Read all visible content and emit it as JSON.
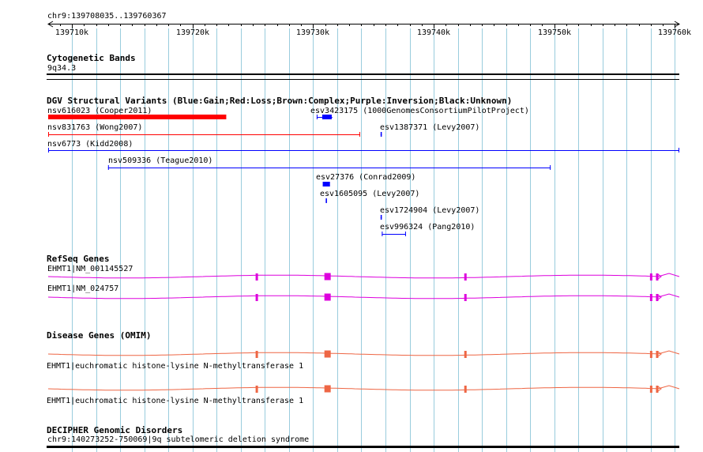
{
  "region_label": "chr9:139708035..139760367",
  "ruler": {
    "start": 139708035,
    "end": 139760367,
    "ticks": [
      {
        "pos": 139710000,
        "label": "139710k"
      },
      {
        "pos": 139720000,
        "label": "139720k"
      },
      {
        "pos": 139730000,
        "label": "139730k"
      },
      {
        "pos": 139740000,
        "label": "139740k"
      },
      {
        "pos": 139750000,
        "label": "139750k"
      },
      {
        "pos": 139760000,
        "label": "139760k"
      }
    ]
  },
  "colors": {
    "gain": "#0000ff",
    "loss": "#ff0000",
    "gene": "#dd00dd",
    "omim": "#ee6644",
    "grid": "#99ccdd"
  },
  "tracks": {
    "cytoband": {
      "title": "Cytogenetic Bands",
      "band": "9q34.3"
    },
    "dgv": {
      "title": "DGV Structural Variants (Blue:Gain;Red:Loss;Brown:Complex;Purple:Inversion;Black:Unknown)",
      "variants": [
        {
          "label": "nsv616023 (Cooper2011)",
          "start": 139708035,
          "end": 139722800,
          "type": "loss",
          "style": "thick"
        },
        {
          "label": "esv3423175 (1000GenomesConsortiumPilotProject)",
          "start": 139730300,
          "end": 139731600,
          "type": "gain",
          "style": "small"
        },
        {
          "label": "nsv831763 (Wong2007)",
          "start": 139708035,
          "end": 139733900,
          "type": "loss",
          "style": "line"
        },
        {
          "label": "esv1387371 (Levy2007)",
          "start": 139735600,
          "end": 139735700,
          "type": "gain",
          "style": "line"
        },
        {
          "label": "nsv6773 (Kidd2008)",
          "start": 139708035,
          "end": 139760367,
          "type": "gain",
          "style": "line"
        },
        {
          "label": "nsv509336 (Teague2010)",
          "start": 139713000,
          "end": 139749700,
          "type": "gain",
          "style": "line"
        },
        {
          "label": "esv27376 (Conrad2009)",
          "start": 139730800,
          "end": 139731400,
          "type": "gain",
          "style": "block"
        },
        {
          "label": "esv1605095 (Levy2007)",
          "start": 139731050,
          "end": 139731150,
          "type": "gain",
          "style": "line"
        },
        {
          "label": "esv1724904 (Levy2007)",
          "start": 139735600,
          "end": 139735700,
          "type": "gain",
          "style": "line"
        },
        {
          "label": "esv996324 (Pang2010)",
          "start": 139735700,
          "end": 139737700,
          "type": "gain",
          "style": "line"
        }
      ]
    },
    "refseq": {
      "title": "RefSeq Genes",
      "genes": [
        {
          "label": "EHMT1|NM_001145527"
        },
        {
          "label": "EHMT1|NM_024757"
        }
      ],
      "exons": [
        {
          "pos": 139725300,
          "kind": "thin"
        },
        {
          "pos": 139731200,
          "kind": "wide"
        },
        {
          "pos": 139742600,
          "kind": "thin"
        },
        {
          "pos": 139758000,
          "kind": "thin"
        },
        {
          "pos": 139758500,
          "kind": "thin"
        }
      ]
    },
    "omim": {
      "title": "Disease Genes (OMIM)",
      "genes": [
        {
          "label": "EHMT1|euchromatic histone-lysine N-methyltransferase 1"
        },
        {
          "label": "EHMT1|euchromatic histone-lysine N-methyltransferase 1"
        }
      ]
    },
    "decipher": {
      "title": "DECIPHER Genomic Disorders",
      "items": [
        {
          "label": "chr9:140273252-750069|9q subtelomeric deletion syndrome"
        }
      ]
    }
  }
}
